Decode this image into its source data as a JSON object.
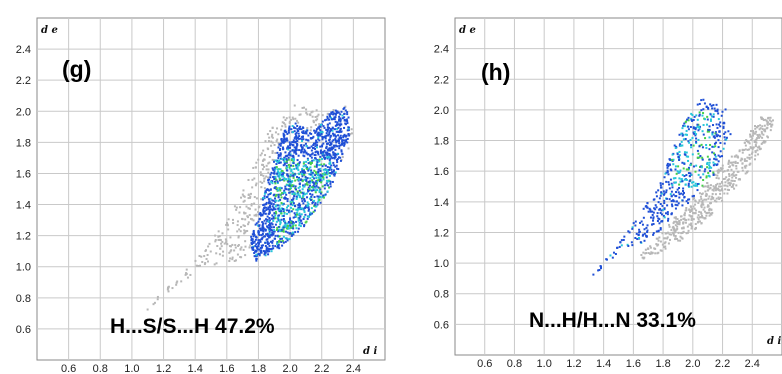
{
  "chart_data": [
    {
      "type": "fingerprint_plot",
      "panel_label": "(g)",
      "contact_label": "H...S/S...H 47.2%",
      "ylabel": "d e",
      "xlabel": "d i",
      "x_ticks": [
        "0.6",
        "0.8",
        "1.0",
        "1.2",
        "1.4",
        "1.6",
        "1.8",
        "2.0",
        "2.2",
        "2.4"
      ],
      "y_ticks": [
        "0.6",
        "0.8",
        "1.0",
        "1.2",
        "1.4",
        "1.6",
        "1.8",
        "2.0",
        "2.2",
        "2.4"
      ],
      "xlim": [
        0.4,
        2.6
      ],
      "ylim": [
        0.4,
        2.6
      ],
      "grid": true,
      "gray_region_outline": [
        [
          1.07,
          0.71
        ],
        [
          1.25,
          0.86
        ],
        [
          1.45,
          1.01
        ],
        [
          1.62,
          1.03
        ],
        [
          1.88,
          1.15
        ],
        [
          2.08,
          1.35
        ],
        [
          2.3,
          1.62
        ],
        [
          2.4,
          1.85
        ],
        [
          2.35,
          2.04
        ],
        [
          2.2,
          2.0
        ],
        [
          2.05,
          2.07
        ],
        [
          1.88,
          1.93
        ],
        [
          1.75,
          1.62
        ],
        [
          1.62,
          1.35
        ],
        [
          1.5,
          1.18
        ],
        [
          1.3,
          0.95
        ],
        [
          1.12,
          0.78
        ]
      ],
      "colored_region_outline": [
        [
          1.77,
          1.04
        ],
        [
          1.92,
          1.12
        ],
        [
          2.1,
          1.28
        ],
        [
          2.27,
          1.55
        ],
        [
          2.37,
          1.85
        ],
        [
          2.36,
          2.04
        ],
        [
          2.25,
          2.0
        ],
        [
          2.13,
          1.87
        ],
        [
          2.02,
          1.94
        ],
        [
          1.95,
          1.87
        ],
        [
          1.88,
          1.65
        ],
        [
          1.8,
          1.38
        ],
        [
          1.74,
          1.18
        ]
      ],
      "density_core": {
        "x": [
          1.9,
          2.25
        ],
        "y": [
          1.15,
          1.7
        ]
      }
    },
    {
      "type": "fingerprint_plot",
      "panel_label": "(h)",
      "contact_label": "N...H/H...N 33.1%",
      "ylabel": "d e",
      "xlabel": "d i",
      "x_ticks": [
        "0.6",
        "0.8",
        "1.0",
        "1.2",
        "1.4",
        "1.6",
        "1.8",
        "2.0",
        "2.2",
        "2.4"
      ],
      "y_ticks": [
        "0.6",
        "0.8",
        "1.0",
        "1.2",
        "1.4",
        "1.6",
        "1.8",
        "2.0",
        "2.2",
        "2.4"
      ],
      "xlim": [
        0.4,
        2.6
      ],
      "ylim": [
        0.4,
        2.6
      ],
      "grid": true,
      "gray_region_outline": [
        [
          1.62,
          1.02
        ],
        [
          1.85,
          1.1
        ],
        [
          2.1,
          1.3
        ],
        [
          2.35,
          1.58
        ],
        [
          2.5,
          1.82
        ],
        [
          2.55,
          1.95
        ],
        [
          2.45,
          1.97
        ],
        [
          2.3,
          1.75
        ],
        [
          2.15,
          1.6
        ],
        [
          1.95,
          1.4
        ],
        [
          1.78,
          1.2
        ],
        [
          1.66,
          1.08
        ]
      ],
      "colored_region_outline": [
        [
          1.1,
          0.72
        ],
        [
          1.3,
          0.9
        ],
        [
          1.5,
          1.08
        ],
        [
          1.62,
          1.12
        ],
        [
          1.75,
          1.2
        ],
        [
          1.95,
          1.38
        ],
        [
          2.15,
          1.6
        ],
        [
          2.25,
          1.85
        ],
        [
          2.22,
          2.02
        ],
        [
          2.05,
          2.08
        ],
        [
          1.92,
          1.9
        ],
        [
          1.78,
          1.55
        ],
        [
          1.62,
          1.3
        ],
        [
          1.45,
          1.08
        ],
        [
          1.25,
          0.85
        ]
      ],
      "density_core": {
        "x": [
          1.85,
          2.15
        ],
        "y": [
          1.5,
          2.0
        ]
      }
    }
  ],
  "colors": {
    "gray": "#b7b7b7",
    "blue": "#1f4fd6",
    "cyan": "#26c6d9",
    "green": "#47d04a",
    "grid": "#c9c9c9",
    "frame": "#8a8a8a"
  }
}
